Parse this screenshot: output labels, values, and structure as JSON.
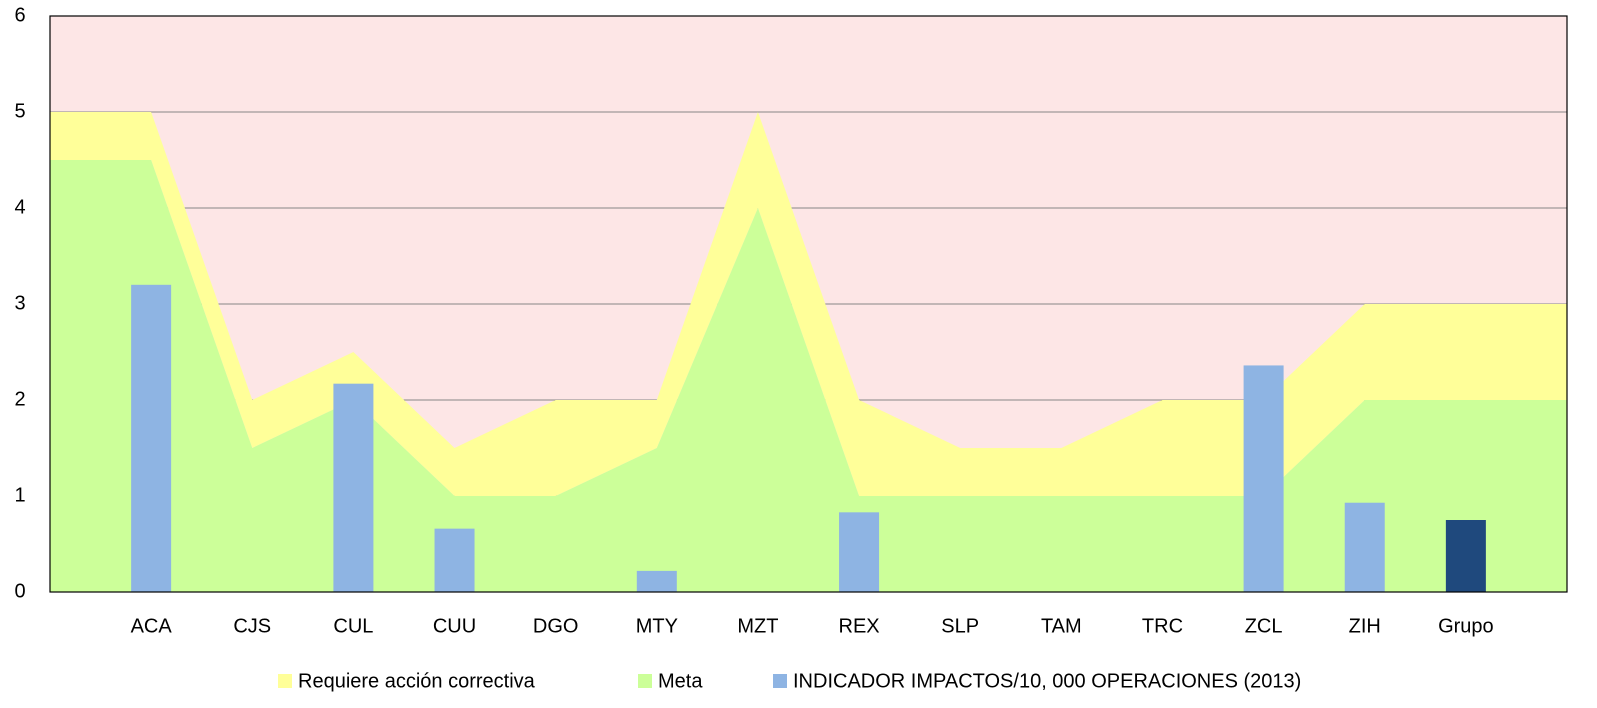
{
  "chart_data": {
    "type": "bar_area",
    "categories": [
      "ACA",
      "CJS",
      "CUL",
      "CUU",
      "DGO",
      "MTY",
      "MZT",
      "REX",
      "SLP",
      "TAM",
      "TRC",
      "ZCL",
      "ZIH",
      "Grupo"
    ],
    "plot_background": "#fde6e6",
    "grid": true,
    "ylim": [
      0,
      6
    ],
    "yticks": [
      0,
      1,
      2,
      3,
      4,
      5,
      6
    ],
    "series": [
      {
        "name": "Requiere acción correctiva",
        "kind": "area",
        "stack_on": "Meta",
        "color": "#ffff99",
        "values": [
          0.5,
          0.5,
          0.5,
          0.5,
          1,
          0.5,
          1,
          1,
          0.5,
          0.5,
          1,
          1,
          1,
          1
        ]
      },
      {
        "name": "Meta",
        "kind": "area",
        "color": "#ccff99",
        "values": [
          4.5,
          1.5,
          2,
          1,
          1,
          1.5,
          4,
          1,
          1,
          1,
          1,
          1,
          2,
          2
        ]
      },
      {
        "name": "INDICADOR IMPACTOS/10, 000 OPERACIONES (2013)",
        "kind": "bar",
        "color": "#8eb4e3",
        "colors": [
          "#8eb4e3",
          "#8eb4e3",
          "#8eb4e3",
          "#8eb4e3",
          "#8eb4e3",
          "#8eb4e3",
          "#8eb4e3",
          "#8eb4e3",
          "#8eb4e3",
          "#8eb4e3",
          "#8eb4e3",
          "#8eb4e3",
          "#8eb4e3",
          "#1f497d"
        ],
        "values": [
          3.2,
          0,
          2.17,
          0.66,
          0,
          0.22,
          0,
          0.83,
          0,
          0,
          0,
          2.36,
          0.93,
          0.75
        ]
      }
    ]
  }
}
